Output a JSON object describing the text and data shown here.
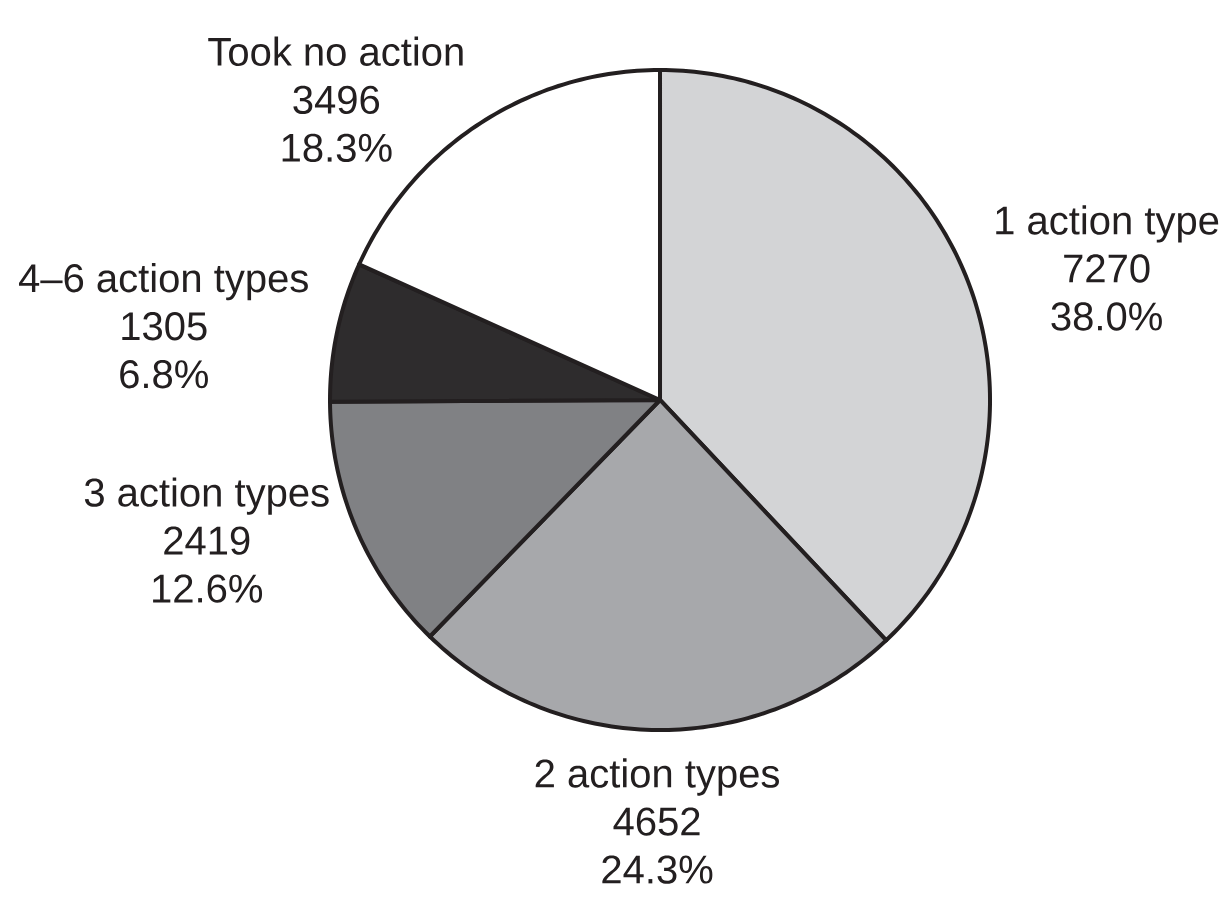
{
  "chart_data": {
    "type": "pie",
    "categories": [
      "1 action type",
      "2 action types",
      "3 action types",
      "4–6 action types",
      "Took no action"
    ],
    "values": [
      7270,
      4652,
      2419,
      1305,
      3496
    ],
    "colors": [
      "#d3d4d6",
      "#a7a8ab",
      "#808184",
      "#2e2c2d",
      "#ffffff"
    ],
    "value_labels": [
      "7270 38.0%",
      "4652 24.3%",
      "2419 12.6%",
      "1305 6.8%",
      "3496 18.3%"
    ]
  }
}
